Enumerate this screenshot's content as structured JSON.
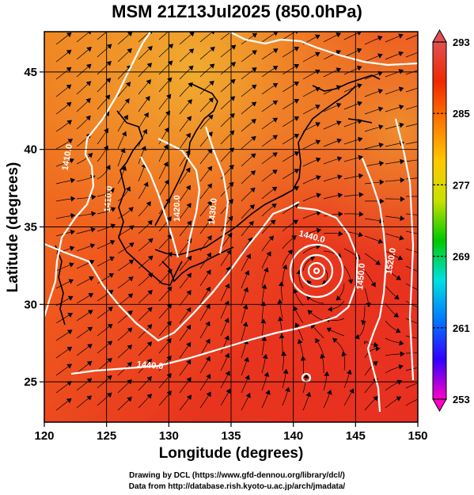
{
  "title": "MSM 21Z13Jul2025 (850.0hPa)",
  "map": {
    "xlabel": "Longitude (degrees)",
    "ylabel": "Latitude  (degrees)",
    "lon_range": [
      120,
      150
    ],
    "lat_range": [
      22.4,
      47.6
    ],
    "lon_ticks": [
      120,
      125,
      130,
      135,
      140,
      145,
      150
    ],
    "lat_ticks": [
      25,
      30,
      35,
      40,
      45
    ],
    "grid": true,
    "field": "temperature",
    "contour_labels": [
      {
        "text": "1410.0",
        "lon": 121.8,
        "lat": 39.5,
        "rot": -80
      },
      {
        "text": "1410.0",
        "lon": 125.1,
        "lat": 36.8,
        "rot": -85
      },
      {
        "text": "1420.0",
        "lon": 130.6,
        "lat": 36.2,
        "rot": -90
      },
      {
        "text": "1430.0",
        "lon": 133.5,
        "lat": 36.0,
        "rot": -85
      },
      {
        "text": "1440.0",
        "lon": 141.5,
        "lat": 34.4,
        "rot": 15
      },
      {
        "text": "1450.0",
        "lon": 145.4,
        "lat": 31.8,
        "rot": -85
      },
      {
        "text": "1520.0",
        "lon": 147.8,
        "lat": 32.8,
        "rot": -80
      },
      {
        "text": "1440.0",
        "lon": 128.5,
        "lat": 26.1,
        "rot": 5
      }
    ]
  },
  "colorbar": {
    "min": 253,
    "max": 293,
    "labels": [
      293,
      285,
      277,
      269,
      261,
      253
    ],
    "colors": [
      "#ff00c8",
      "#3200ff",
      "#0078ff",
      "#00e1e1",
      "#00c800",
      "#c8e100",
      "#ffc800",
      "#ff7800",
      "#f02800",
      "#e05050"
    ]
  },
  "credits": {
    "line1": "Drawing by DCL (https://www.gfd-dennou.org/library/dcl/)",
    "line2": "Data from http://database.rish.kyoto-u.ac.jp/arch/jmadata/"
  }
}
